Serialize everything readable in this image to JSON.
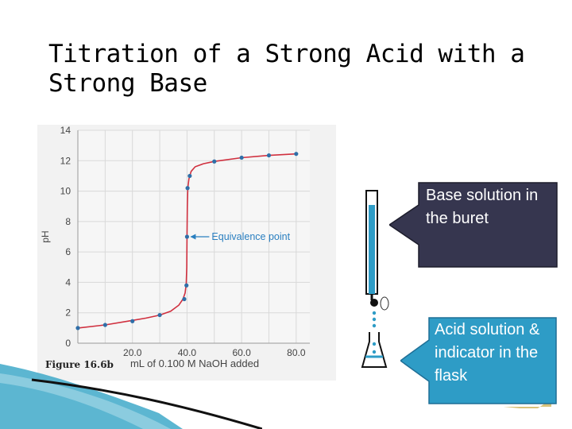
{
  "slide": {
    "title": "Titration of a Strong Acid with a Strong Base"
  },
  "figure_label": "Figure 16.6b",
  "callouts": {
    "base": "Base solution in the buret",
    "acid": "Acid solution & indicator in the flask"
  },
  "colors": {
    "curve": "#d0303f",
    "points": "#2f6fa8",
    "grid": "#d9d9d9",
    "plot_bg": "#f6f6f6",
    "annotation": "#2a7fc0",
    "base_callout": "#36364f",
    "acid_callout": "#2e9cc6",
    "buret_liquid": "#2e9cc6"
  },
  "chart_data": {
    "type": "line",
    "title": "",
    "xlabel": "mL of 0.100 M NaOH added",
    "ylabel": "pH",
    "xlim": [
      0,
      85
    ],
    "ylim": [
      0,
      14
    ],
    "xticks": [
      "20.0",
      "40.0",
      "60.0",
      "80.0"
    ],
    "yticks": [
      "0",
      "2",
      "4",
      "6",
      "8",
      "10",
      "12",
      "14"
    ],
    "grid": true,
    "curve": {
      "x": [
        0,
        10,
        20,
        25,
        30,
        34,
        37,
        38.5,
        39.3,
        39.7,
        39.9,
        40.0,
        40.1,
        40.3,
        40.7,
        41.5,
        43,
        46,
        50,
        60,
        70,
        80
      ],
      "y": [
        1.0,
        1.2,
        1.5,
        1.65,
        1.85,
        2.1,
        2.5,
        2.9,
        3.3,
        3.9,
        5.0,
        7.0,
        9.0,
        10.2,
        10.8,
        11.3,
        11.6,
        11.8,
        11.95,
        12.2,
        12.35,
        12.45
      ]
    },
    "points": {
      "x": [
        0,
        10,
        20,
        30,
        39,
        39.8,
        40,
        40.2,
        41,
        50,
        60,
        70,
        80
      ],
      "y": [
        1.0,
        1.2,
        1.45,
        1.85,
        2.9,
        3.8,
        7.0,
        10.2,
        11.0,
        11.95,
        12.2,
        12.35,
        12.45
      ]
    },
    "annotations": [
      {
        "text": "Equivalence point",
        "x": 40,
        "y": 7.0
      }
    ]
  }
}
